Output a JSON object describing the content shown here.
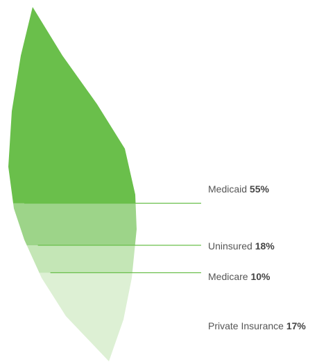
{
  "chart_data": {
    "type": "leaf",
    "categories": [
      "Medicaid",
      "Uninsured",
      "Medicare",
      "Private Insurance"
    ],
    "values": [
      55,
      18,
      10,
      17
    ],
    "value_labels": [
      "55%",
      "18%",
      "10%",
      "17%"
    ],
    "colors": [
      "#6abf4b",
      "#9dd489",
      "#c4e6b6",
      "#ddf0d4"
    ]
  }
}
